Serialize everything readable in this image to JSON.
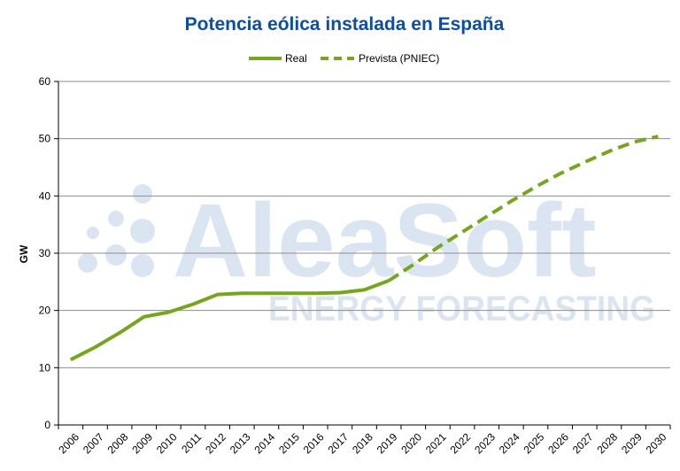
{
  "colors": {
    "title": "#0b4ea2",
    "series": "#77a51f",
    "watermark": "#dbe5f1",
    "grid": "#8c8c8c",
    "axis": "#000000"
  },
  "watermark": {
    "brand": "AleaSoft",
    "tagline": "ENERGY FORECASTING",
    "icon": "aleasoft-dots-logo"
  },
  "chart_data": {
    "type": "line",
    "title": "Potencia eólica instalada en España",
    "xlabel": "",
    "ylabel": "GW",
    "ylim": [
      0,
      60
    ],
    "yticks": [
      0,
      10,
      20,
      30,
      40,
      50,
      60
    ],
    "grid": true,
    "legend_position": "top-center",
    "categories": [
      "2006",
      "2007",
      "2008",
      "2009",
      "2010",
      "2011",
      "2012",
      "2013",
      "2014",
      "2015",
      "2016",
      "2017",
      "2018",
      "2019",
      "2020",
      "2021",
      "2022",
      "2023",
      "2024",
      "2025",
      "2026",
      "2027",
      "2028",
      "2029",
      "2030"
    ],
    "series": [
      {
        "name": "Real",
        "style": "solid",
        "x": [
          "2006",
          "2007",
          "2008",
          "2009",
          "2010",
          "2011",
          "2012",
          "2013",
          "2014",
          "2015",
          "2016",
          "2017",
          "2018",
          "2019"
        ],
        "values": [
          11.4,
          13.6,
          16.1,
          18.9,
          19.7,
          21.1,
          22.8,
          23.0,
          23.0,
          23.0,
          23.0,
          23.1,
          23.6,
          25.2
        ]
      },
      {
        "name": "Prevista (PNIEC)",
        "style": "dashed",
        "x": [
          "2019",
          "2020",
          "2021",
          "2022",
          "2023",
          "2024",
          "2025",
          "2026",
          "2027",
          "2028",
          "2029",
          "2030"
        ],
        "values": [
          25.2,
          28.0,
          31.0,
          33.7,
          36.4,
          39.1,
          41.6,
          43.9,
          45.9,
          47.8,
          49.4,
          50.4
        ]
      }
    ]
  }
}
